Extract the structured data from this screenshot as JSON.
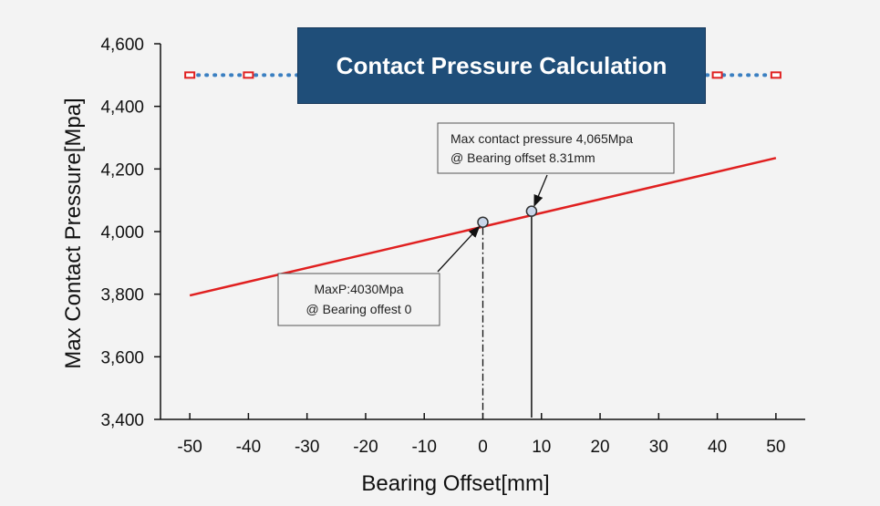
{
  "chart_data": {
    "type": "line",
    "title": "Contact Pressure Calculation",
    "xlabel": "Bearing Offset[mm]",
    "ylabel": "Max Contact Pressure[Mpa]",
    "xlim": [
      -55,
      55
    ],
    "ylim": [
      3400,
      4600
    ],
    "x_ticks": [
      -50,
      -40,
      -30,
      -20,
      -10,
      0,
      10,
      20,
      30,
      40,
      50
    ],
    "x_tick_labels": [
      "-50",
      "-40",
      "-30",
      "-20",
      "-10",
      "0",
      "10",
      "20",
      "30",
      "40",
      "50"
    ],
    "y_ticks": [
      3400,
      3600,
      3800,
      4000,
      4200,
      4400,
      4600
    ],
    "y_tick_labels": [
      "3,400",
      "3,600",
      "3,800",
      "4,000",
      "4,200",
      "4,400",
      "4,600"
    ],
    "grid": false,
    "series": [
      {
        "style": "solid",
        "color": "#e02020",
        "x": [
          -50,
          50
        ],
        "y": [
          3796,
          4235
        ]
      },
      {
        "style": "dotted",
        "color": "#3a7fc1",
        "marker_color": "#e02020",
        "x": [
          -50,
          -40,
          40,
          50
        ],
        "y": [
          4500,
          4500,
          4500,
          4500
        ]
      }
    ],
    "highlight_points": [
      {
        "x": 0,
        "y": 4030,
        "label_lines": [
          "MaxP:4030Mpa",
          "@ Bearing offest 0"
        ],
        "drop_line": "dash-dot"
      },
      {
        "x": 8.31,
        "y": 4065,
        "label_lines": [
          "Max contact pressure 4,065Mpa",
          " @ Bearing offset 8.31mm"
        ],
        "drop_line": "solid"
      }
    ]
  }
}
